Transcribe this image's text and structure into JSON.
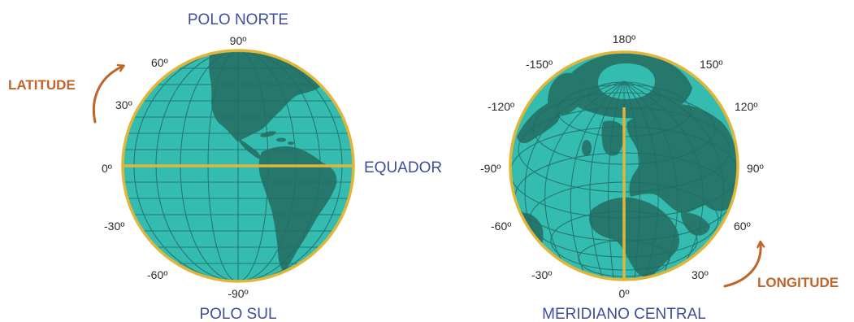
{
  "colors": {
    "ocean": "#35bcb0",
    "land": "#26776c",
    "grid": "#226d66",
    "gold": "#e0b53a",
    "blue_text": "#3f4e9a",
    "orange": "#c0652a",
    "degree_text": "#2a2a2a"
  },
  "latitude_globe": {
    "top_title": "POLO NORTE",
    "bottom_title": "POLO SUL",
    "equator_label": "EQUADOR",
    "side_label": "LATITUDE",
    "arrow_icon": "curved-arrow-up-right",
    "degrees": {
      "north_pole": "90º",
      "lat_60": "60º",
      "lat_30": "30º",
      "lat_0": "0º",
      "lat_minus_30": "-30º",
      "lat_minus_60": "-60º",
      "south_pole": "-90º"
    }
  },
  "longitude_globe": {
    "bottom_title": "MERIDIANO CENTRAL",
    "side_label": "LONGITUDE",
    "arrow_icon": "curved-arrow-up-right",
    "degrees": {
      "lon_180": "180º",
      "lon_minus_150": "-150º",
      "lon_150": "150º",
      "lon_minus_120": "-120º",
      "lon_120": "120º",
      "lon_minus_90": "-90º",
      "lon_90": "90º",
      "lon_minus_60": "-60º",
      "lon_60": "60º",
      "lon_minus_30": "-30º",
      "lon_30": "30º",
      "lon_0": "0º"
    }
  }
}
